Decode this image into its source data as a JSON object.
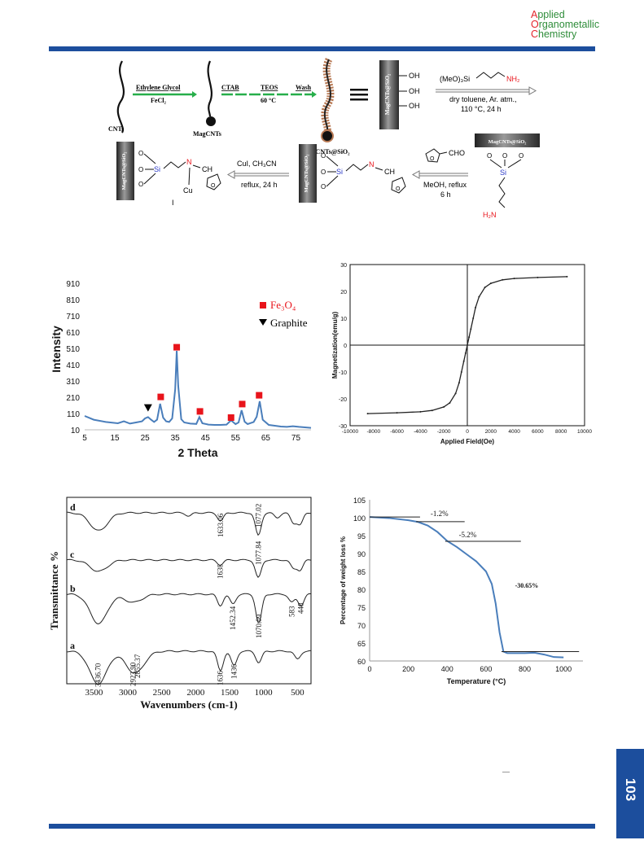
{
  "journal": {
    "line1_first": "A",
    "line1_rest": "pplied",
    "line2_first": "O",
    "line2_rest": "rganometallic",
    "line3_first": "C",
    "line3_rest": "hemistry"
  },
  "page_number": "103",
  "scheme": {
    "cnts": "CNTs",
    "ethylene_glycol": "Ethylene Glycol",
    "fecl2": "FeCl₂",
    "magcnts": "MagCNTs",
    "ctab": "CTAB",
    "teos": "TEOS",
    "temp60": "60 °C",
    "wash": "Wash",
    "magcnts_sio2": "MagCNTs@SiO₂",
    "rod_label": "MagCNTs@SiO₂",
    "oh": "OH",
    "reagent_aminosilane": "(MeO)₃Si",
    "nh2": "NH₂",
    "cond1a": "dry toluene, Ar. atm.,",
    "cond1b": "110 °C, 24 h",
    "cho": "CHO",
    "cond2a": "MeOH, reflux",
    "cond2b": "6 h",
    "cond3a": "CuI, CH₃CN",
    "cond3b": "reflux, 24 h",
    "o": "O",
    "si": "Si",
    "n": "N",
    "ch": "CH",
    "cu": "Cu",
    "i": "I",
    "h2n": "H₂N"
  },
  "colors": {
    "brand_blue": "#1c4e9d",
    "arrow_green": "#27ae4a",
    "xrd_line": "#4a7ebb",
    "marker_red": "#e8141b",
    "tga_line": "#4a7ebb"
  },
  "chart_data": [
    {
      "type": "line",
      "xlabel": "2 Theta",
      "ylabel": "Intensity",
      "xlim": [
        5,
        80
      ],
      "ylim": [
        10,
        1000
      ],
      "xticks": [
        "5",
        "15",
        "25",
        "35",
        "45",
        "55",
        "65",
        "75"
      ],
      "yticks": [
        "10",
        "110",
        "210",
        "310",
        "410",
        "510",
        "610",
        "710",
        "810",
        "910"
      ],
      "legend": [
        {
          "name": "Fe₃O₄",
          "marker": "square"
        },
        {
          "name": "Graphite",
          "marker": "triangle"
        }
      ],
      "x": [
        5,
        8,
        12,
        16,
        18,
        20,
        22,
        24,
        25,
        26,
        27,
        28,
        29,
        30,
        31,
        32,
        33,
        34,
        35,
        35.5,
        36,
        37,
        38,
        40,
        42,
        43,
        44,
        46,
        48,
        50,
        52,
        53.5,
        55,
        56,
        57,
        58,
        59,
        61,
        62,
        63,
        64,
        66,
        68,
        70,
        72,
        74,
        76,
        78,
        80
      ],
      "y": [
        95,
        72,
        58,
        50,
        62,
        48,
        55,
        62,
        80,
        88,
        72,
        58,
        72,
        170,
        85,
        62,
        58,
        80,
        260,
        495,
        280,
        75,
        55,
        48,
        46,
        88,
        50,
        42,
        40,
        40,
        42,
        68,
        45,
        55,
        130,
        60,
        45,
        58,
        90,
        185,
        72,
        40,
        35,
        30,
        28,
        32,
        28,
        25,
        22
      ],
      "fe3o4_peaks": [
        [
          30.2,
          212
        ],
        [
          35.5,
          517
        ],
        [
          43.2,
          123
        ],
        [
          53.5,
          85
        ],
        [
          57.2,
          168
        ],
        [
          62.8,
          222
        ]
      ],
      "graphite_peaks": [
        [
          26.0,
          142
        ]
      ]
    },
    {
      "type": "line",
      "xlabel": "Applied Field(Oe)",
      "ylabel": "Magnetization(emu/g)",
      "xlim": [
        -10000,
        10000
      ],
      "ylim": [
        -30,
        30
      ],
      "xticks": [
        "-10000",
        "-8000",
        "-6000",
        "-4000",
        "-2000",
        "0",
        "2000",
        "4000",
        "6000",
        "8000",
        "10000"
      ],
      "yticks": [
        "-30",
        "-20",
        "-10",
        "0",
        "10",
        "20",
        "30"
      ],
      "x": [
        -8500,
        -6000,
        -4000,
        -3000,
        -2000,
        -1500,
        -1000,
        -700,
        -500,
        -300,
        -150,
        0,
        150,
        300,
        500,
        700,
        1000,
        1500,
        2000,
        3000,
        4000,
        6000,
        8500
      ],
      "y": [
        -25.5,
        -25.2,
        -24.8,
        -24.3,
        -23.0,
        -21.5,
        -18.0,
        -14.0,
        -10.0,
        -6.0,
        -3.0,
        0,
        3.0,
        6.0,
        10.0,
        14.0,
        18.0,
        21.5,
        23.0,
        24.3,
        24.8,
        25.2,
        25.5
      ]
    },
    {
      "type": "line",
      "xlabel": "Wavenumbers (cm-1)",
      "ylabel": "Transmittance %",
      "xlim": [
        3900,
        300
      ],
      "xticks": [
        "3500",
        "3000",
        "2500",
        "2000",
        "1500",
        "1000",
        "500"
      ],
      "series": [
        {
          "name": "d",
          "labels": [
            "1633.06",
            "1077.02"
          ]
        },
        {
          "name": "c",
          "labels": [
            "1638",
            "1077.84"
          ]
        },
        {
          "name": "b",
          "labels": [
            "1452.34",
            "1070.09",
            "583",
            "448"
          ]
        },
        {
          "name": "a",
          "labels": [
            "3436.70",
            "2923.90",
            "2855.37",
            "1636",
            "1436"
          ]
        }
      ]
    },
    {
      "type": "line",
      "xlabel": "Temperature (°C)",
      "ylabel": "Percentage of weight loss %",
      "xlim": [
        0,
        1100
      ],
      "ylim": [
        60,
        105
      ],
      "xticks": [
        "0",
        "200",
        "400",
        "600",
        "800",
        "1000"
      ],
      "yticks": [
        "60",
        "65",
        "70",
        "75",
        "80",
        "85",
        "90",
        "95",
        "100",
        "105"
      ],
      "annotations": [
        "-1.2%",
        "-5.2%",
        "-30.65%"
      ],
      "x": [
        0,
        100,
        200,
        250,
        300,
        350,
        400,
        450,
        500,
        550,
        600,
        630,
        650,
        670,
        690,
        710,
        750,
        800,
        850,
        900,
        950,
        1000
      ],
      "y": [
        100.2,
        99.9,
        99.3,
        98.8,
        97.8,
        96.0,
        93.5,
        91.8,
        89.8,
        87.8,
        85.0,
        81.5,
        76.0,
        68.0,
        62.6,
        62.2,
        62.2,
        62.2,
        62.3,
        61.8,
        61.1,
        61.0
      ]
    }
  ]
}
